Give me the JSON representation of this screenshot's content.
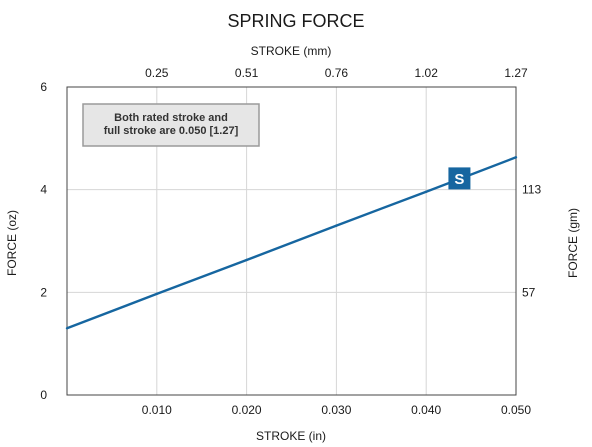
{
  "chart_data": {
    "type": "line",
    "title": "SPRING FORCE",
    "xlabel": "STROKE (in)",
    "ylabel": "FORCE (oz)",
    "x2label": "STROKE (mm)",
    "y2label": "FORCE (gm)",
    "xlim": [
      0,
      0.05
    ],
    "ylim": [
      0,
      6
    ],
    "x_ticks": [
      {
        "value": 0.01,
        "label": "0.010"
      },
      {
        "value": 0.02,
        "label": "0.020"
      },
      {
        "value": 0.03,
        "label": "0.030"
      },
      {
        "value": 0.04,
        "label": "0.040"
      },
      {
        "value": 0.05,
        "label": "0.050"
      }
    ],
    "y_ticks": [
      {
        "value": 0,
        "label": "0"
      },
      {
        "value": 2,
        "label": "2"
      },
      {
        "value": 4,
        "label": "4"
      },
      {
        "value": 6,
        "label": "6"
      }
    ],
    "x2_ticks": [
      {
        "value": 0.01,
        "label": "0.25"
      },
      {
        "value": 0.02,
        "label": "0.51"
      },
      {
        "value": 0.03,
        "label": "0.76"
      },
      {
        "value": 0.04,
        "label": "1.02"
      },
      {
        "value": 0.05,
        "label": "1.27"
      }
    ],
    "y2_ticks": [
      {
        "value": 2,
        "label": "57"
      },
      {
        "value": 4,
        "label": "113"
      }
    ],
    "grid": true,
    "series": [
      {
        "x": [
          0.0,
          0.01,
          0.02,
          0.03,
          0.04,
          0.05
        ],
        "y": [
          1.3,
          1.97,
          2.63,
          3.3,
          3.96,
          4.63
        ],
        "color": "#1666a0"
      }
    ],
    "annotation": {
      "lines": [
        "Both rated stroke and",
        "full stroke are 0.050 [1.27]"
      ],
      "background": "#e6e6e6",
      "border": "#9a9a9a"
    },
    "marker": {
      "label": "S",
      "x": 0.0437,
      "y": 4.2,
      "color": "#1666a0"
    }
  }
}
